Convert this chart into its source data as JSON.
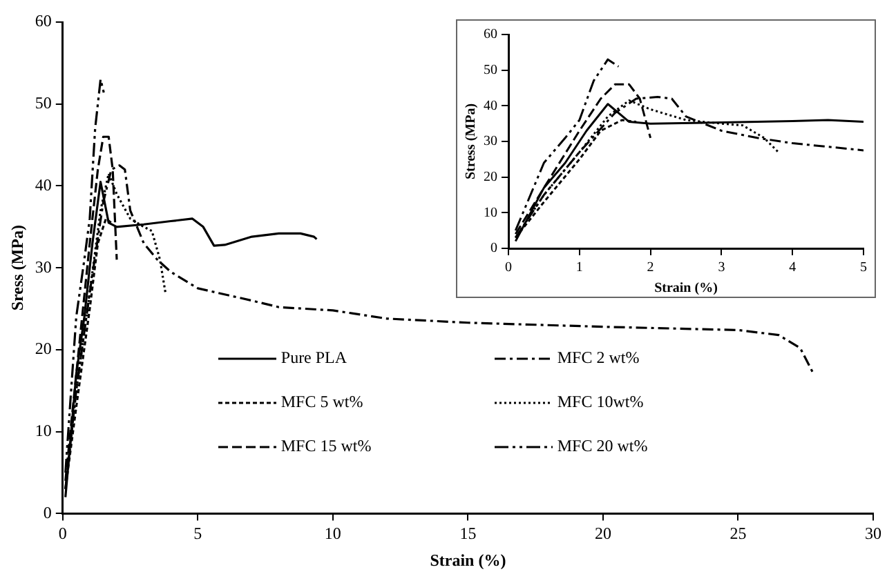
{
  "chart_data": [
    {
      "type": "line",
      "xlabel": "Strain (%)",
      "ylabel": "Sress (MPa)",
      "xlim": [
        0,
        30
      ],
      "ylim": [
        0,
        60
      ],
      "xticks": [
        0,
        5,
        10,
        15,
        20,
        25,
        30
      ],
      "yticks": [
        0,
        10,
        20,
        30,
        40,
        50,
        60
      ],
      "grid": false,
      "legend": "bottom left",
      "marker": "none",
      "series": [
        {
          "name": "Pure PLA",
          "color": "#000000",
          "line_style": "solid",
          "x": [
            0.1,
            0.5,
            0.8,
            1.1,
            1.4,
            1.7,
            2,
            3,
            4,
            4.8,
            5.2,
            5.6,
            6,
            7,
            8,
            8.8,
            9.3,
            9.4
          ],
          "values": [
            2,
            17,
            24,
            33,
            40.5,
            35.5,
            35,
            35.3,
            35.7,
            36,
            35,
            32.7,
            32.8,
            33.8,
            34.2,
            34.2,
            33.8,
            33.5
          ]
        },
        {
          "name": "MFC 2 wt%",
          "color": "#000000",
          "line_style": "dashdot",
          "x": [
            0.1,
            0.5,
            1,
            1.5,
            1.8,
            2.1,
            2.3,
            2.5,
            3,
            3.5,
            4,
            5,
            7,
            8,
            10,
            12,
            15,
            20,
            25,
            26.5,
            27.3,
            27.8
          ],
          "values": [
            3,
            15,
            27,
            38,
            42,
            42.5,
            42,
            37,
            33,
            31,
            29.5,
            27.5,
            26,
            25.2,
            24.8,
            23.8,
            23.3,
            22.8,
            22.4,
            21.8,
            20.2,
            17
          ]
        },
        {
          "name": "MFC 5 wt%",
          "color": "#000000",
          "line_style": "dashed",
          "x": [
            0.1,
            0.5,
            1,
            1.3,
            1.6,
            1.8
          ],
          "values": [
            3,
            13,
            25,
            33,
            36,
            35.5
          ]
        },
        {
          "name": "MFC 10wt%",
          "color": "#000000",
          "line_style": "dotted",
          "x": [
            0.1,
            0.5,
            1,
            1.4,
            1.7,
            2,
            2.5,
            3,
            3.3,
            3.6,
            3.8
          ],
          "values": [
            3,
            15,
            27,
            37,
            41.5,
            39,
            36,
            35,
            34.5,
            31,
            27
          ]
        },
        {
          "name": "MFC 15 wt%",
          "color": "#000000",
          "line_style": "longdash",
          "x": [
            0.1,
            0.5,
            1,
            1.3,
            1.5,
            1.7,
            1.85,
            2
          ],
          "values": [
            4,
            17,
            33,
            42,
            46,
            46,
            42,
            31
          ]
        },
        {
          "name": "MFC 20 wt%",
          "color": "#000000",
          "line_style": "dashdotdot",
          "x": [
            0.1,
            0.5,
            0.8,
            1,
            1.2,
            1.4,
            1.55
          ],
          "values": [
            5,
            24,
            31,
            36,
            47,
            53,
            51
          ]
        }
      ]
    },
    {
      "type": "line",
      "xlabel": "Strain (%)",
      "ylabel": "Stress (MPa)",
      "xlim": [
        0,
        5
      ],
      "ylim": [
        0,
        60
      ],
      "xticks": [
        0,
        1,
        2,
        3,
        4,
        5
      ],
      "yticks": [
        0,
        10,
        20,
        30,
        40,
        50,
        60
      ],
      "grid": false,
      "legend": false,
      "marker": "none",
      "series": [
        {
          "color": "#000000",
          "line_style": "solid",
          "x": [
            0.1,
            0.5,
            0.8,
            1.1,
            1.4,
            1.7,
            2,
            3,
            4,
            4.5,
            5
          ],
          "values": [
            2,
            17,
            24,
            33,
            40.5,
            35.5,
            35,
            35.3,
            35.7,
            36,
            35.5
          ]
        },
        {
          "color": "#000000",
          "line_style": "dashdot",
          "x": [
            0.1,
            0.5,
            1,
            1.5,
            1.8,
            2.1,
            2.3,
            2.5,
            3,
            3.5,
            4,
            5
          ],
          "values": [
            3,
            15,
            27,
            38,
            42,
            42.5,
            42,
            37,
            33,
            31,
            29.5,
            27.5
          ]
        },
        {
          "color": "#000000",
          "line_style": "dashed",
          "x": [
            0.1,
            0.5,
            1,
            1.3,
            1.6,
            1.8
          ],
          "values": [
            3,
            13,
            25,
            33,
            36,
            35.5
          ]
        },
        {
          "color": "#000000",
          "line_style": "dotted",
          "x": [
            0.1,
            0.5,
            1,
            1.4,
            1.7,
            2,
            2.5,
            3,
            3.3,
            3.6,
            3.8
          ],
          "values": [
            3,
            15,
            27,
            37,
            41.5,
            39,
            36,
            35,
            34.5,
            31,
            27
          ]
        },
        {
          "color": "#000000",
          "line_style": "longdash",
          "x": [
            0.1,
            0.5,
            1,
            1.3,
            1.5,
            1.7,
            1.85,
            2
          ],
          "values": [
            4,
            17,
            33,
            42,
            46,
            46,
            42,
            31
          ]
        },
        {
          "color": "#000000",
          "line_style": "dashdotdot",
          "x": [
            0.1,
            0.5,
            0.8,
            1,
            1.2,
            1.4,
            1.55
          ],
          "values": [
            5,
            24,
            31,
            36,
            47,
            53,
            51
          ]
        }
      ]
    }
  ]
}
